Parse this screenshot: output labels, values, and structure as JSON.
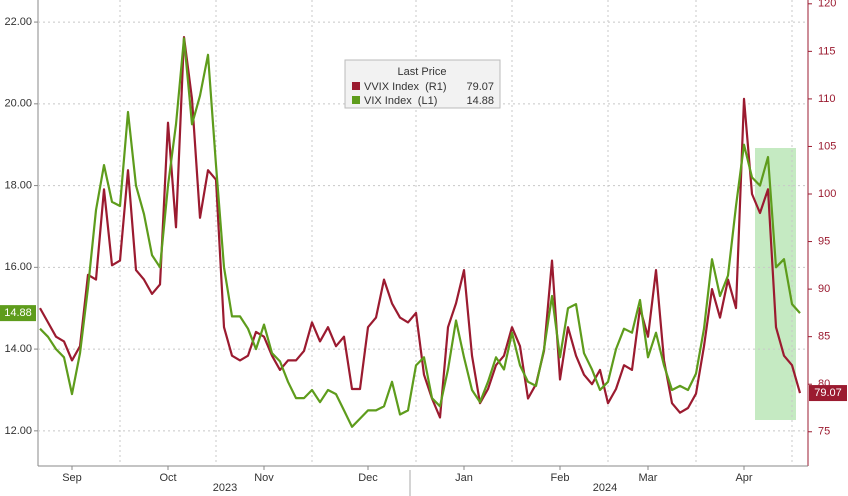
{
  "chart_data": {
    "type": "line",
    "legend_title": "Last Price",
    "categories": [
      null,
      null,
      null,
      null,
      "Sep",
      null,
      null,
      null,
      null,
      null,
      null,
      null,
      null,
      null,
      null,
      null,
      "Oct",
      null,
      null,
      null,
      null,
      null,
      null,
      null,
      null,
      null,
      null,
      null,
      "Nov",
      null,
      null,
      null,
      null,
      null,
      null,
      null,
      null,
      null,
      null,
      null,
      null,
      "Dec",
      null,
      null,
      null,
      null,
      null,
      null,
      null,
      null,
      null,
      null,
      null,
      "Jan",
      null,
      null,
      null,
      null,
      null,
      null,
      null,
      null,
      null,
      null,
      null,
      "Feb",
      null,
      null,
      null,
      null,
      null,
      null,
      null,
      null,
      null,
      null,
      "Mar",
      null,
      null,
      null,
      null,
      null,
      null,
      null,
      null,
      null,
      null,
      null,
      "Apr",
      null,
      null,
      null,
      null,
      null,
      null,
      null
    ],
    "x_group_labels": [
      "2023",
      "2024"
    ],
    "series": [
      {
        "name": "VVIX Index  (R1)",
        "color": "#9b1b30",
        "axis": "y2",
        "values": [
          88.0,
          86.5,
          85.0,
          84.5,
          82.5,
          84.0,
          91.5,
          91.0,
          100.5,
          92.5,
          93.0,
          102.5,
          92.0,
          91.0,
          89.5,
          90.5,
          107.5,
          96.5,
          116.5,
          110.0,
          97.5,
          102.5,
          101.5,
          86.0,
          83.0,
          82.5,
          83.0,
          85.5,
          85.0,
          83.0,
          81.5,
          82.5,
          82.5,
          83.5,
          86.5,
          84.5,
          86.0,
          84.0,
          85.0,
          79.5,
          79.5,
          86.0,
          87.0,
          91.0,
          88.5,
          87.0,
          86.5,
          87.5,
          81.0,
          78.5,
          76.5,
          86.0,
          88.5,
          92.0,
          83.0,
          78.0,
          79.5,
          82.0,
          83.0,
          86.0,
          84.0,
          78.5,
          80.0,
          83.5,
          93.0,
          80.5,
          86.0,
          83.0,
          81.0,
          80.0,
          81.5,
          78.0,
          79.5,
          82.0,
          81.5,
          88.0,
          85.0,
          92.0,
          82.5,
          78.0,
          77.0,
          77.5,
          79.0,
          84.0,
          90.0,
          87.0,
          91.0,
          88.0,
          110.0,
          100.0,
          98.0,
          100.5,
          86.0,
          83.0,
          82.0,
          79.07
        ]
      },
      {
        "name": "VIX Index  (L1)",
        "color": "#5e9c1c",
        "values": [
          14.5,
          14.3,
          14.0,
          13.8,
          12.9,
          13.9,
          15.5,
          17.4,
          18.5,
          17.6,
          17.5,
          19.8,
          18.0,
          17.3,
          16.3,
          16.0,
          18.0,
          19.5,
          21.6,
          19.5,
          20.2,
          21.2,
          18.5,
          16.0,
          14.8,
          14.8,
          14.5,
          14.0,
          14.6,
          13.9,
          13.7,
          13.2,
          12.8,
          12.8,
          13.0,
          12.7,
          13.0,
          12.9,
          12.5,
          12.1,
          12.3,
          12.5,
          12.5,
          12.6,
          13.2,
          12.4,
          12.5,
          13.6,
          13.8,
          12.8,
          12.6,
          13.5,
          14.7,
          13.8,
          13.0,
          12.7,
          13.2,
          13.8,
          13.5,
          14.4,
          13.6,
          13.2,
          13.1,
          14.0,
          15.3,
          13.8,
          15.0,
          15.1,
          13.9,
          13.5,
          13.0,
          13.2,
          14.0,
          14.5,
          14.4,
          15.2,
          13.8,
          14.4,
          13.6,
          13.0,
          13.1,
          13.0,
          13.4,
          14.5,
          16.2,
          15.3,
          15.8,
          17.5,
          19.0,
          18.2,
          18.0,
          18.7,
          16.0,
          16.2,
          15.1,
          14.88
        ]
      }
    ],
    "ylim": [
      11.14,
      22.54
    ],
    "yticks": [
      {
        "value": 12,
        "label": "12.00"
      },
      {
        "value": 14,
        "label": "14.00"
      },
      {
        "value": 16,
        "label": "16.00"
      },
      {
        "value": 18,
        "label": "18.00"
      },
      {
        "value": 20,
        "label": "20.00"
      },
      {
        "value": 22,
        "label": "22.00"
      }
    ],
    "y2lim": [
      71.4,
      120.4
    ],
    "y2ticks": [
      75,
      80,
      85,
      90,
      95,
      100,
      105,
      110,
      115,
      120
    ],
    "grid": true
  }
}
